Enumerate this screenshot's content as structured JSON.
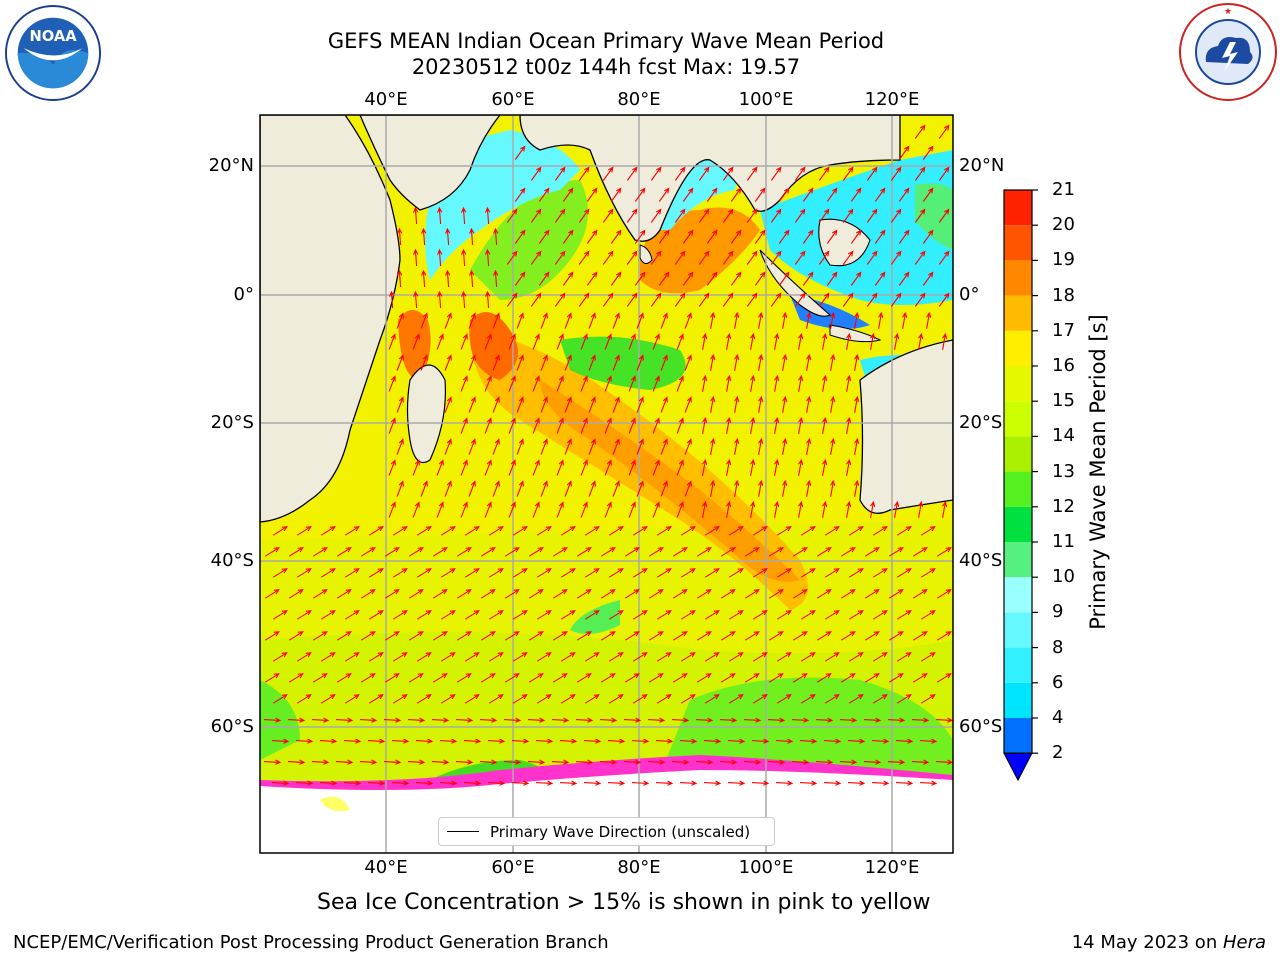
{
  "header": {
    "title_line1": "GEFS MEAN Indian Ocean Primary Wave Mean Period",
    "title_line2": "20230512 t00z 144h fcst   Max: 19.57"
  },
  "logos": {
    "noaa": {
      "text": "NOAA",
      "ring_text": "NATIONAL OCEANIC AND ATMOSPHERIC ADMINISTRATION · U.S. DEPARTMENT OF COMMERCE"
    },
    "nws": {
      "ring_text": "NATIONAL WEATHER SERVICE"
    }
  },
  "map": {
    "lon_labels": [
      "40°E",
      "60°E",
      "80°E",
      "100°E",
      "120°E"
    ],
    "lat_labels": [
      "20°N",
      "0°",
      "20°S",
      "40°S",
      "60°S"
    ],
    "ocean_base_color": "#f2f200",
    "land_color": "#efecdc",
    "arrow_color": "#ff0000",
    "ice_colors": [
      "#ff33cc",
      "#ffff66",
      "#ffffff"
    ]
  },
  "legend": {
    "label": "Primary Wave Direction (unscaled)"
  },
  "colorbar": {
    "label": "Primary Wave Mean Period [s]",
    "ticks": [
      "2",
      "4",
      "6",
      "8",
      "9",
      "10",
      "11",
      "12",
      "13",
      "14",
      "15",
      "16",
      "17",
      "18",
      "19",
      "20",
      "21"
    ],
    "colors": [
      "#0070ff",
      "#00e5ff",
      "#33f0ff",
      "#66f8ff",
      "#99ffff",
      "#55f080",
      "#00e040",
      "#55f020",
      "#aaf000",
      "#ccff00",
      "#e5f800",
      "#ffee00",
      "#ffbb00",
      "#ff8800",
      "#ff5500",
      "#ff2200",
      "#ff0000"
    ],
    "extend_color": "#0000ff"
  },
  "footnote": "Sea Ice Concentration > 15% is shown in pink to yellow",
  "footer": {
    "left": "NCEP/EMC/Verification Post Processing Product Generation Branch",
    "right_date": "14 May 2023 on ",
    "right_host": "Hera"
  }
}
